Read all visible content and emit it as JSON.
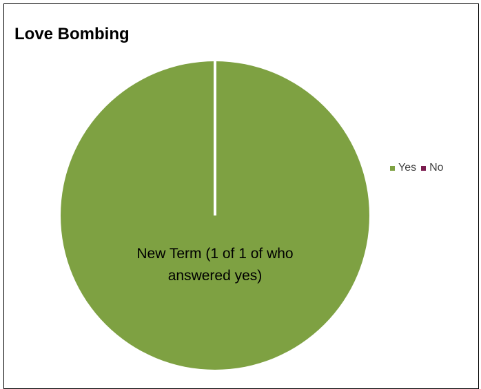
{
  "chart_data": {
    "type": "pie",
    "title": "Love Bombing",
    "categories": [
      "Yes",
      "No"
    ],
    "values": [
      1,
      0
    ],
    "colors": [
      "#7EA142",
      "#7B1C4F"
    ],
    "legend_position": "right",
    "data_label": "New Term (1 of 1 of who answered yes)"
  }
}
